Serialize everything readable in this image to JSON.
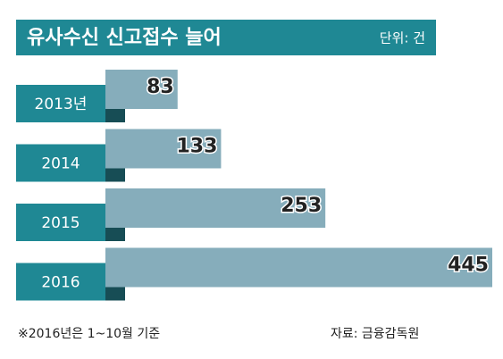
{
  "chart_data": {
    "type": "bar",
    "orientation": "horizontal",
    "title": "유사수신 신고접수 늘어",
    "unit": "단위: 건",
    "categories": [
      "2013년",
      "2014",
      "2015",
      "2016"
    ],
    "values": [
      83,
      133,
      253,
      445
    ],
    "color": "#86adbb",
    "label_color": "#1f8894",
    "note": "※2016년은 1~10월 기준",
    "source": "자료: 금융감독원"
  }
}
